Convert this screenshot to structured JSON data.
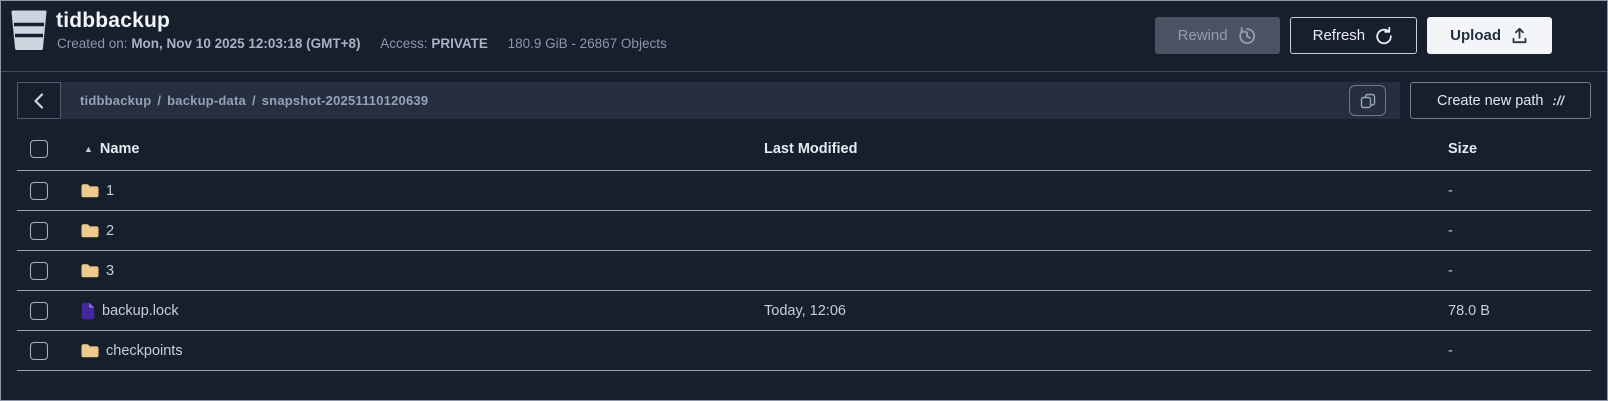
{
  "colors": {
    "page_bg": "#171e2c",
    "panel_bg": "#262f3f",
    "row_divider": "#9aa3b4",
    "folder_icon": "#ecca8e",
    "file_icon": "#45279d",
    "upload_button_bg": "#f3f5f8",
    "disabled_button_bg": "#4b5363"
  },
  "header": {
    "bucket_icon": "bucket-icon",
    "title": "tidbbackup",
    "created_label": "Created on:",
    "created_value": "Mon, Nov 10 2025 12:03:18 (GMT+8)",
    "access_label": "Access:",
    "access_value": "PRIVATE",
    "usage": "180.9 GiB - 26867 Objects",
    "buttons": {
      "rewind": {
        "label": "Rewind",
        "icon": "rewind-clock-icon",
        "disabled": true
      },
      "refresh": {
        "label": "Refresh",
        "icon": "refresh-icon",
        "disabled": false
      },
      "upload": {
        "label": "Upload",
        "icon": "upload-tray-icon",
        "disabled": false
      }
    }
  },
  "toolbar": {
    "back_icon": "chevron-left-icon",
    "breadcrumb": {
      "segments": [
        "tidbbackup",
        "backup-data",
        "snapshot-20251110120639"
      ],
      "separator": "/"
    },
    "copy_icon": "copy-icon",
    "create_path": {
      "label": "Create new path",
      "icon": "path-slashes-icon",
      "icon_glyph": "://"
    }
  },
  "table": {
    "sort_icon": "sort-ascending-icon",
    "sort_icon_glyph": "▲",
    "columns": {
      "name": "Name",
      "last_modified": "Last Modified",
      "size": "Size"
    },
    "rows": [
      {
        "type": "folder",
        "name": "1",
        "last_modified": "",
        "size": "-"
      },
      {
        "type": "folder",
        "name": "2",
        "last_modified": "",
        "size": "-"
      },
      {
        "type": "folder",
        "name": "3",
        "last_modified": "",
        "size": "-"
      },
      {
        "type": "file",
        "name": "backup.lock",
        "last_modified": "Today, 12:06",
        "size": "78.0 B"
      },
      {
        "type": "folder",
        "name": "checkpoints",
        "last_modified": "",
        "size": "-"
      }
    ]
  }
}
